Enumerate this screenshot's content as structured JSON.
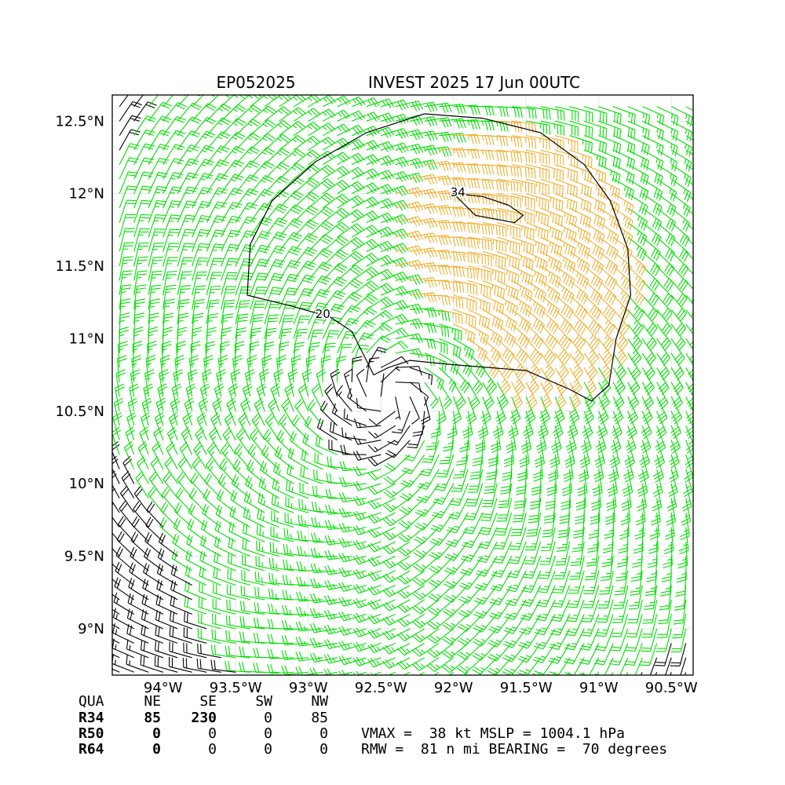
{
  "chart_data": {
    "type": "wind-barb-map",
    "title_left": "EP052025",
    "title_right": "INVEST 2025 17 Jun 00UTC",
    "x": {
      "min": -94.35,
      "max": -90.35,
      "ticks": [
        -94,
        -93.5,
        -93,
        -92.5,
        -92,
        -91.5,
        -91,
        -90.5
      ],
      "tick_labels": [
        "94°W",
        "93.5°W",
        "93°W",
        "92.5°W",
        "92°W",
        "91.5°W",
        "91°W",
        "90.5°W"
      ]
    },
    "y": {
      "min": 8.68,
      "max": 12.68,
      "ticks": [
        9,
        9.5,
        10,
        10.5,
        11,
        11.5,
        12,
        12.5
      ],
      "tick_labels": [
        "9°N",
        "9.5°N",
        "10°N",
        "10.5°N",
        "11°N",
        "11.5°N",
        "12°N",
        "12.5°N"
      ]
    },
    "grid": true,
    "center": {
      "lon": -92.4,
      "lat": 10.68
    },
    "rmw_nmi": 81,
    "bearing_deg": 70,
    "vmax_kt": 38,
    "barb_colors": {
      "below_34": "#000000",
      "34_to_50": "#00e000",
      "at_least_34_core": "#f0b030"
    },
    "contours": [
      {
        "label": "20",
        "points": [
          [
            -92.6,
            10.85
          ],
          [
            -92.55,
            10.75
          ],
          [
            -92.45,
            10.8
          ],
          [
            -92.3,
            10.85
          ],
          [
            -92.0,
            10.82
          ],
          [
            -91.5,
            10.78
          ],
          [
            -91.2,
            10.65
          ],
          [
            -91.05,
            10.57
          ],
          [
            -90.93,
            10.68
          ],
          [
            -90.88,
            11.0
          ],
          [
            -90.78,
            11.3
          ],
          [
            -90.8,
            11.62
          ],
          [
            -90.92,
            11.95
          ],
          [
            -91.1,
            12.2
          ],
          [
            -91.4,
            12.42
          ],
          [
            -91.8,
            12.52
          ],
          [
            -92.2,
            12.55
          ],
          [
            -92.6,
            12.42
          ],
          [
            -92.95,
            12.22
          ],
          [
            -93.25,
            11.95
          ],
          [
            -93.4,
            11.65
          ],
          [
            -93.42,
            11.3
          ],
          [
            -93.1,
            11.22
          ],
          [
            -92.85,
            11.15
          ],
          [
            -92.7,
            11.05
          ],
          [
            -92.6,
            10.85
          ]
        ]
      },
      {
        "label": "34",
        "points": [
          [
            -92.0,
            12.0
          ],
          [
            -91.8,
            11.98
          ],
          [
            -91.62,
            11.92
          ],
          [
            -91.52,
            11.85
          ],
          [
            -91.58,
            11.8
          ],
          [
            -91.85,
            11.85
          ],
          [
            -92.0,
            12.0
          ]
        ]
      }
    ]
  },
  "wind_table": {
    "header": [
      "QUA",
      "NE",
      "SE",
      "SW",
      "NW"
    ],
    "rows": [
      {
        "label": "R34",
        "values": [
          "85",
          "230",
          "0",
          "85"
        ]
      },
      {
        "label": "R50",
        "values": [
          "0",
          "0",
          "0",
          "0"
        ]
      },
      {
        "label": "R64",
        "values": [
          "0",
          "0",
          "0",
          "0"
        ]
      }
    ]
  },
  "summary": {
    "line1": "VMAX =  38 kt MSLP = 1004.1 hPa",
    "line2": "RMW =  81 n mi BEARING =  70 degrees"
  }
}
